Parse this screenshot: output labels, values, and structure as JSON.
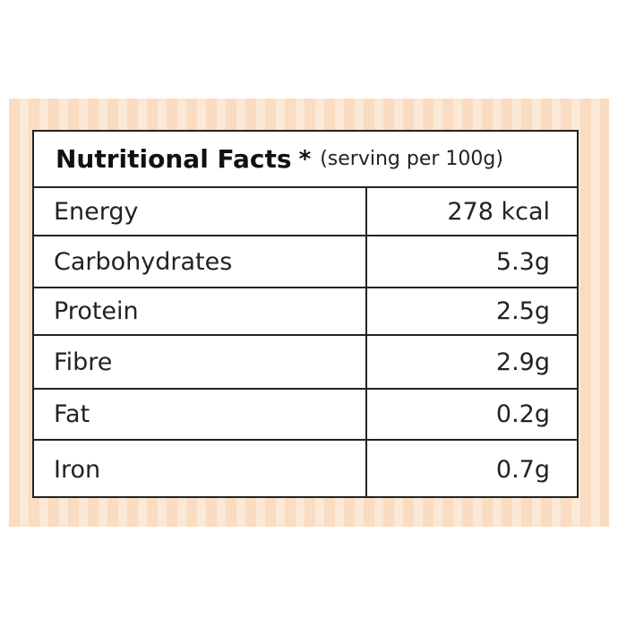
{
  "table": {
    "title": "Nutritional Facts",
    "note_mark": "*",
    "subtitle": "(serving per 100g)",
    "rows": [
      [
        "Energy",
        "278 kcal"
      ],
      [
        "Carbohydrates",
        "5.3g"
      ],
      [
        "Protein",
        "2.5g"
      ],
      [
        "Fibre",
        "2.9g"
      ],
      [
        "Fat",
        "0.2g"
      ],
      [
        "Iron",
        "0.7g"
      ]
    ]
  }
}
